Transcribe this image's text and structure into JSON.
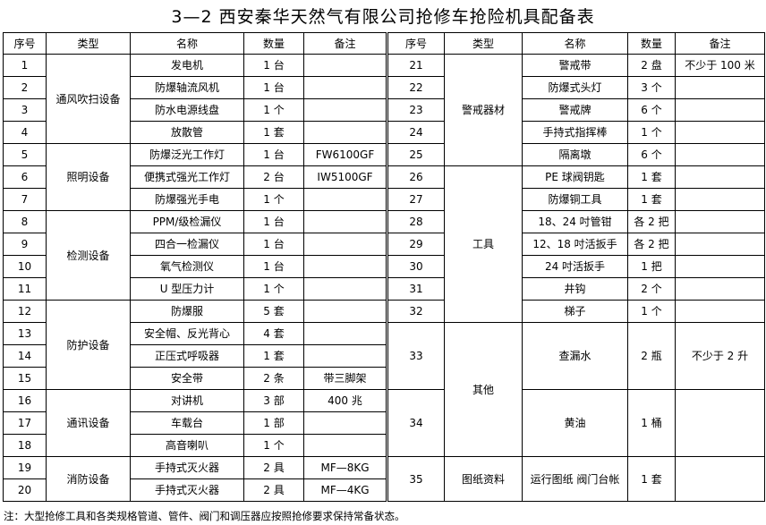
{
  "title": "3—2 西安秦华天然气有限公司抢修车抢险机具配备表",
  "headers": [
    "序号",
    "类型",
    "名称",
    "数量",
    "备注"
  ],
  "left_groups": [
    {
      "type": "通风吹扫设备",
      "items": [
        {
          "no": "1",
          "name": "发电机",
          "qty": "1 台",
          "note": ""
        },
        {
          "no": "2",
          "name": "防爆轴流风机",
          "qty": "1 台",
          "note": ""
        },
        {
          "no": "3",
          "name": "防水电源线盘",
          "qty": "1 个",
          "note": ""
        },
        {
          "no": "4",
          "name": "放散管",
          "qty": "1 套",
          "note": ""
        }
      ]
    },
    {
      "type": "照明设备",
      "items": [
        {
          "no": "5",
          "name": "防爆泛光工作灯",
          "qty": "1 台",
          "note": "FW6100GF"
        },
        {
          "no": "6",
          "name": "便携式强光工作灯",
          "qty": "2 台",
          "note": "IW5100GF"
        },
        {
          "no": "7",
          "name": "防爆强光手电",
          "qty": "1 个",
          "note": ""
        }
      ]
    },
    {
      "type": "检测设备",
      "items": [
        {
          "no": "8",
          "name": "PPM/级检漏仪",
          "qty": "1 台",
          "note": ""
        },
        {
          "no": "9",
          "name": "四合一检漏仪",
          "qty": "1 台",
          "note": ""
        },
        {
          "no": "10",
          "name": "氧气检测仪",
          "qty": "1 台",
          "note": ""
        },
        {
          "no": "11",
          "name": "U 型压力计",
          "qty": "1 个",
          "note": ""
        }
      ]
    },
    {
      "type": "防护设备",
      "items": [
        {
          "no": "12",
          "name": "防爆服",
          "qty": "5 套",
          "note": ""
        },
        {
          "no": "13",
          "name": "安全帽、反光背心",
          "qty": "4 套",
          "note": ""
        },
        {
          "no": "14",
          "name": "正压式呼吸器",
          "qty": "1 套",
          "note": ""
        },
        {
          "no": "15",
          "name": "安全带",
          "qty": "2 条",
          "note": "带三脚架"
        }
      ]
    },
    {
      "type": "通讯设备",
      "items": [
        {
          "no": "16",
          "name": "对讲机",
          "qty": "3 部",
          "note": "400 兆"
        },
        {
          "no": "17",
          "name": "车载台",
          "qty": "1 部",
          "note": ""
        },
        {
          "no": "18",
          "name": "高音喇叭",
          "qty": "1 个",
          "note": ""
        }
      ]
    },
    {
      "type": "消防设备",
      "items": [
        {
          "no": "19",
          "name": "手持式灭火器",
          "qty": "2 具",
          "note": "MF—8KG"
        },
        {
          "no": "20",
          "name": "手持式灭火器",
          "qty": "2 具",
          "note": "MF—4KG"
        }
      ]
    }
  ],
  "right_groups": [
    {
      "type": "警戒器材",
      "items": [
        {
          "no": "21",
          "name": "警戒带",
          "qty": "2 盘",
          "note": "不少于 100 米"
        },
        {
          "no": "22",
          "name": "防爆式头灯",
          "qty": "3 个",
          "note": ""
        },
        {
          "no": "23",
          "name": "警戒牌",
          "qty": "6 个",
          "note": ""
        },
        {
          "no": "24",
          "name": "手持式指挥棒",
          "qty": "1 个",
          "note": ""
        },
        {
          "no": "25",
          "name": "隔离墩",
          "qty": "6 个",
          "note": ""
        }
      ]
    },
    {
      "type": "工具",
      "items": [
        {
          "no": "26",
          "name": "PE 球阀钥匙",
          "qty": "1 套",
          "note": ""
        },
        {
          "no": "27",
          "name": "防爆铜工具",
          "qty": "1 套",
          "note": ""
        },
        {
          "no": "28",
          "name": "18、24 吋管钳",
          "qty": "各 2 把",
          "note": ""
        },
        {
          "no": "29",
          "name": "12、18 吋活扳手",
          "qty": "各 2 把",
          "note": ""
        },
        {
          "no": "30",
          "name": "24 吋活扳手",
          "qty": "1 把",
          "note": ""
        },
        {
          "no": "31",
          "name": "井钩",
          "qty": "2 个",
          "note": ""
        },
        {
          "no": "32",
          "name": "梯子",
          "qty": "1 个",
          "note": ""
        }
      ]
    },
    {
      "type": "其他",
      "items": [
        {
          "no": "33",
          "name": "查漏水",
          "qty": "2 瓶",
          "note": "不少于 2 升"
        },
        {
          "no": "34",
          "name": "黄油",
          "qty": "1 桶",
          "note": ""
        }
      ]
    },
    {
      "type": "图纸资料",
      "items": [
        {
          "no": "35",
          "name": "运行图纸 阀门台帐",
          "qty": "1 套",
          "note": ""
        }
      ]
    }
  ],
  "footnote": "注：大型抢修工具和各类规格管道、管件、阀门和调压器应按照抢修要求保持常备状态。"
}
